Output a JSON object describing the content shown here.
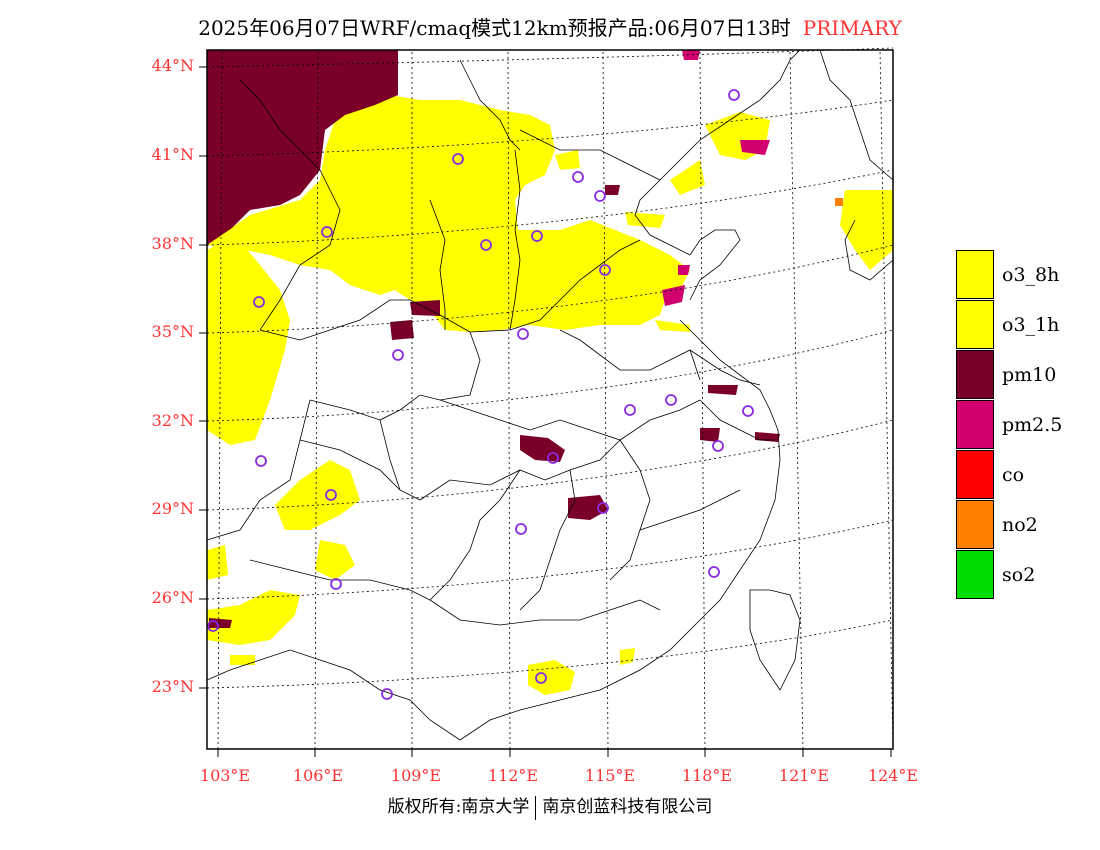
{
  "title": {
    "text": "2025年06月07日WRF/cmaq模式12km预报产品:06月07日13时",
    "tag": "PRIMARY"
  },
  "axes": {
    "lat_labels": [
      "44°N",
      "41°N",
      "38°N",
      "35°N",
      "32°N",
      "29°N",
      "26°N",
      "23°N"
    ],
    "lon_labels": [
      "103°E",
      "106°E",
      "109°E",
      "112°E",
      "115°E",
      "118°E",
      "121°E",
      "124°E"
    ]
  },
  "legend": [
    {
      "label": "o3_8h",
      "color": "#ffff00"
    },
    {
      "label": "o3_1h",
      "color": "#ffff00"
    },
    {
      "label": "pm10",
      "color": "#7a0029"
    },
    {
      "label": "pm2.5",
      "color": "#d2006e"
    },
    {
      "label": "co",
      "color": "#ff0000"
    },
    {
      "label": "no2",
      "color": "#ff7f00"
    },
    {
      "label": "so2",
      "color": "#00dd00"
    }
  ],
  "footer": {
    "left": "版权所有:南京大学",
    "right": "南京创蓝科技有限公司"
  },
  "colors": {
    "o3": "#ffff00",
    "pm10": "#7a0029",
    "pm25": "#d2006e",
    "no2": "#ff7f00",
    "station": "#8a2be2",
    "label": "#ff3333"
  }
}
